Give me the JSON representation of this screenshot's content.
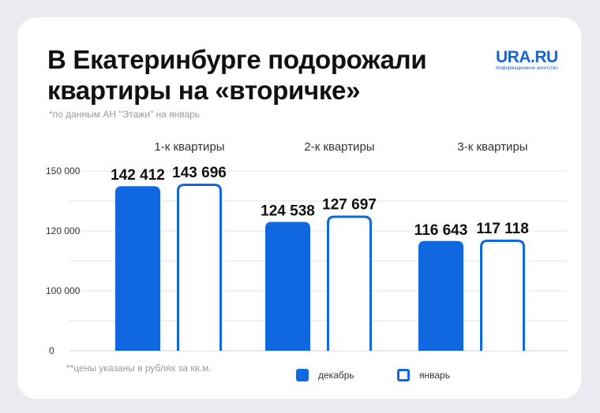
{
  "header": {
    "title_line1": "В Екатеринбурге подорожали",
    "title_line2": "квартиры на «вторичке»",
    "subtitle": "*по данным АН \"Этажи\" на январь"
  },
  "logo": {
    "name": "URA.RU",
    "tagline": "Информационное агентство"
  },
  "footnote": "**цены указаны в рублях за кв.м.",
  "colors": {
    "accent": "#0f68e0",
    "grid": "#e6e6e6"
  },
  "chart_data": {
    "type": "bar",
    "title": "В Екатеринбурге подорожали квартиры на «вторичке»",
    "categories": [
      "1-к квартиры",
      "2-к квартиры",
      "3-к квартиры"
    ],
    "series": [
      {
        "name": "декабрь",
        "values": [
          142412,
          124538,
          116643
        ],
        "labels": [
          "142 412",
          "124 538",
          "116 643"
        ],
        "style": "filled"
      },
      {
        "name": "январь",
        "values": [
          143696,
          127697,
          117118
        ],
        "labels": [
          "143 696",
          "127 697",
          "117 118"
        ],
        "style": "outline"
      }
    ],
    "yticks": [
      {
        "value": 0,
        "label": "0"
      },
      {
        "value": 100000,
        "label": "100 000"
      },
      {
        "value": 120000,
        "label": "120 000"
      },
      {
        "value": 150000,
        "label": "150 000"
      }
    ],
    "ylim": [
      0,
      150000
    ],
    "axis_break": true,
    "grid": true,
    "legend": "bottom-center"
  }
}
